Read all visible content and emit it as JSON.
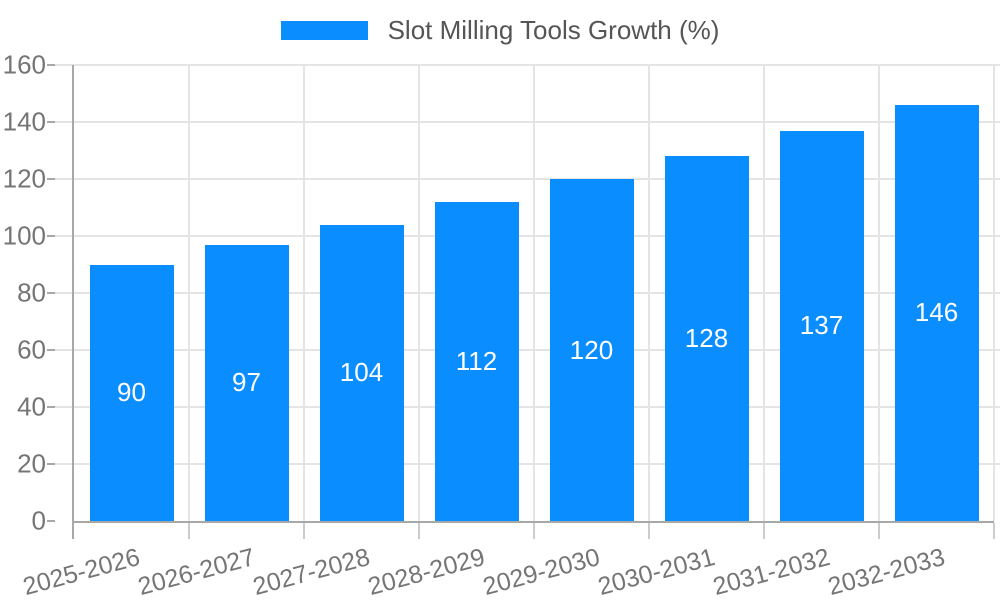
{
  "legend": {
    "label": "Slot Milling Tools Growth (%)"
  },
  "chart_data": {
    "type": "bar",
    "title": "",
    "xlabel": "",
    "ylabel": "",
    "categories": [
      "2025-2026",
      "2026-2027",
      "2027-2028",
      "2028-2029",
      "2029-2030",
      "2030-2031",
      "2031-2032",
      "2032-2033"
    ],
    "series": [
      {
        "name": "Slot Milling Tools Growth (%)",
        "values": [
          90,
          97,
          104,
          112,
          120,
          128,
          137,
          146
        ]
      }
    ],
    "ylim": [
      0,
      160
    ],
    "yticks": [
      0,
      20,
      40,
      60,
      80,
      100,
      120,
      140,
      160
    ],
    "grid": true,
    "legend_position": "top-center",
    "value_label_position": "inside-center"
  },
  "style": {
    "bar_color": "#0a8dff",
    "grid_color": "#e4e4e4",
    "axis_color": "#a8a8a8",
    "xtick_color": "#cccccc",
    "tick_label_color": "#757575",
    "legend_text_color": "#555555",
    "value_label_color": "#ffffff",
    "background": "#ffffff"
  }
}
